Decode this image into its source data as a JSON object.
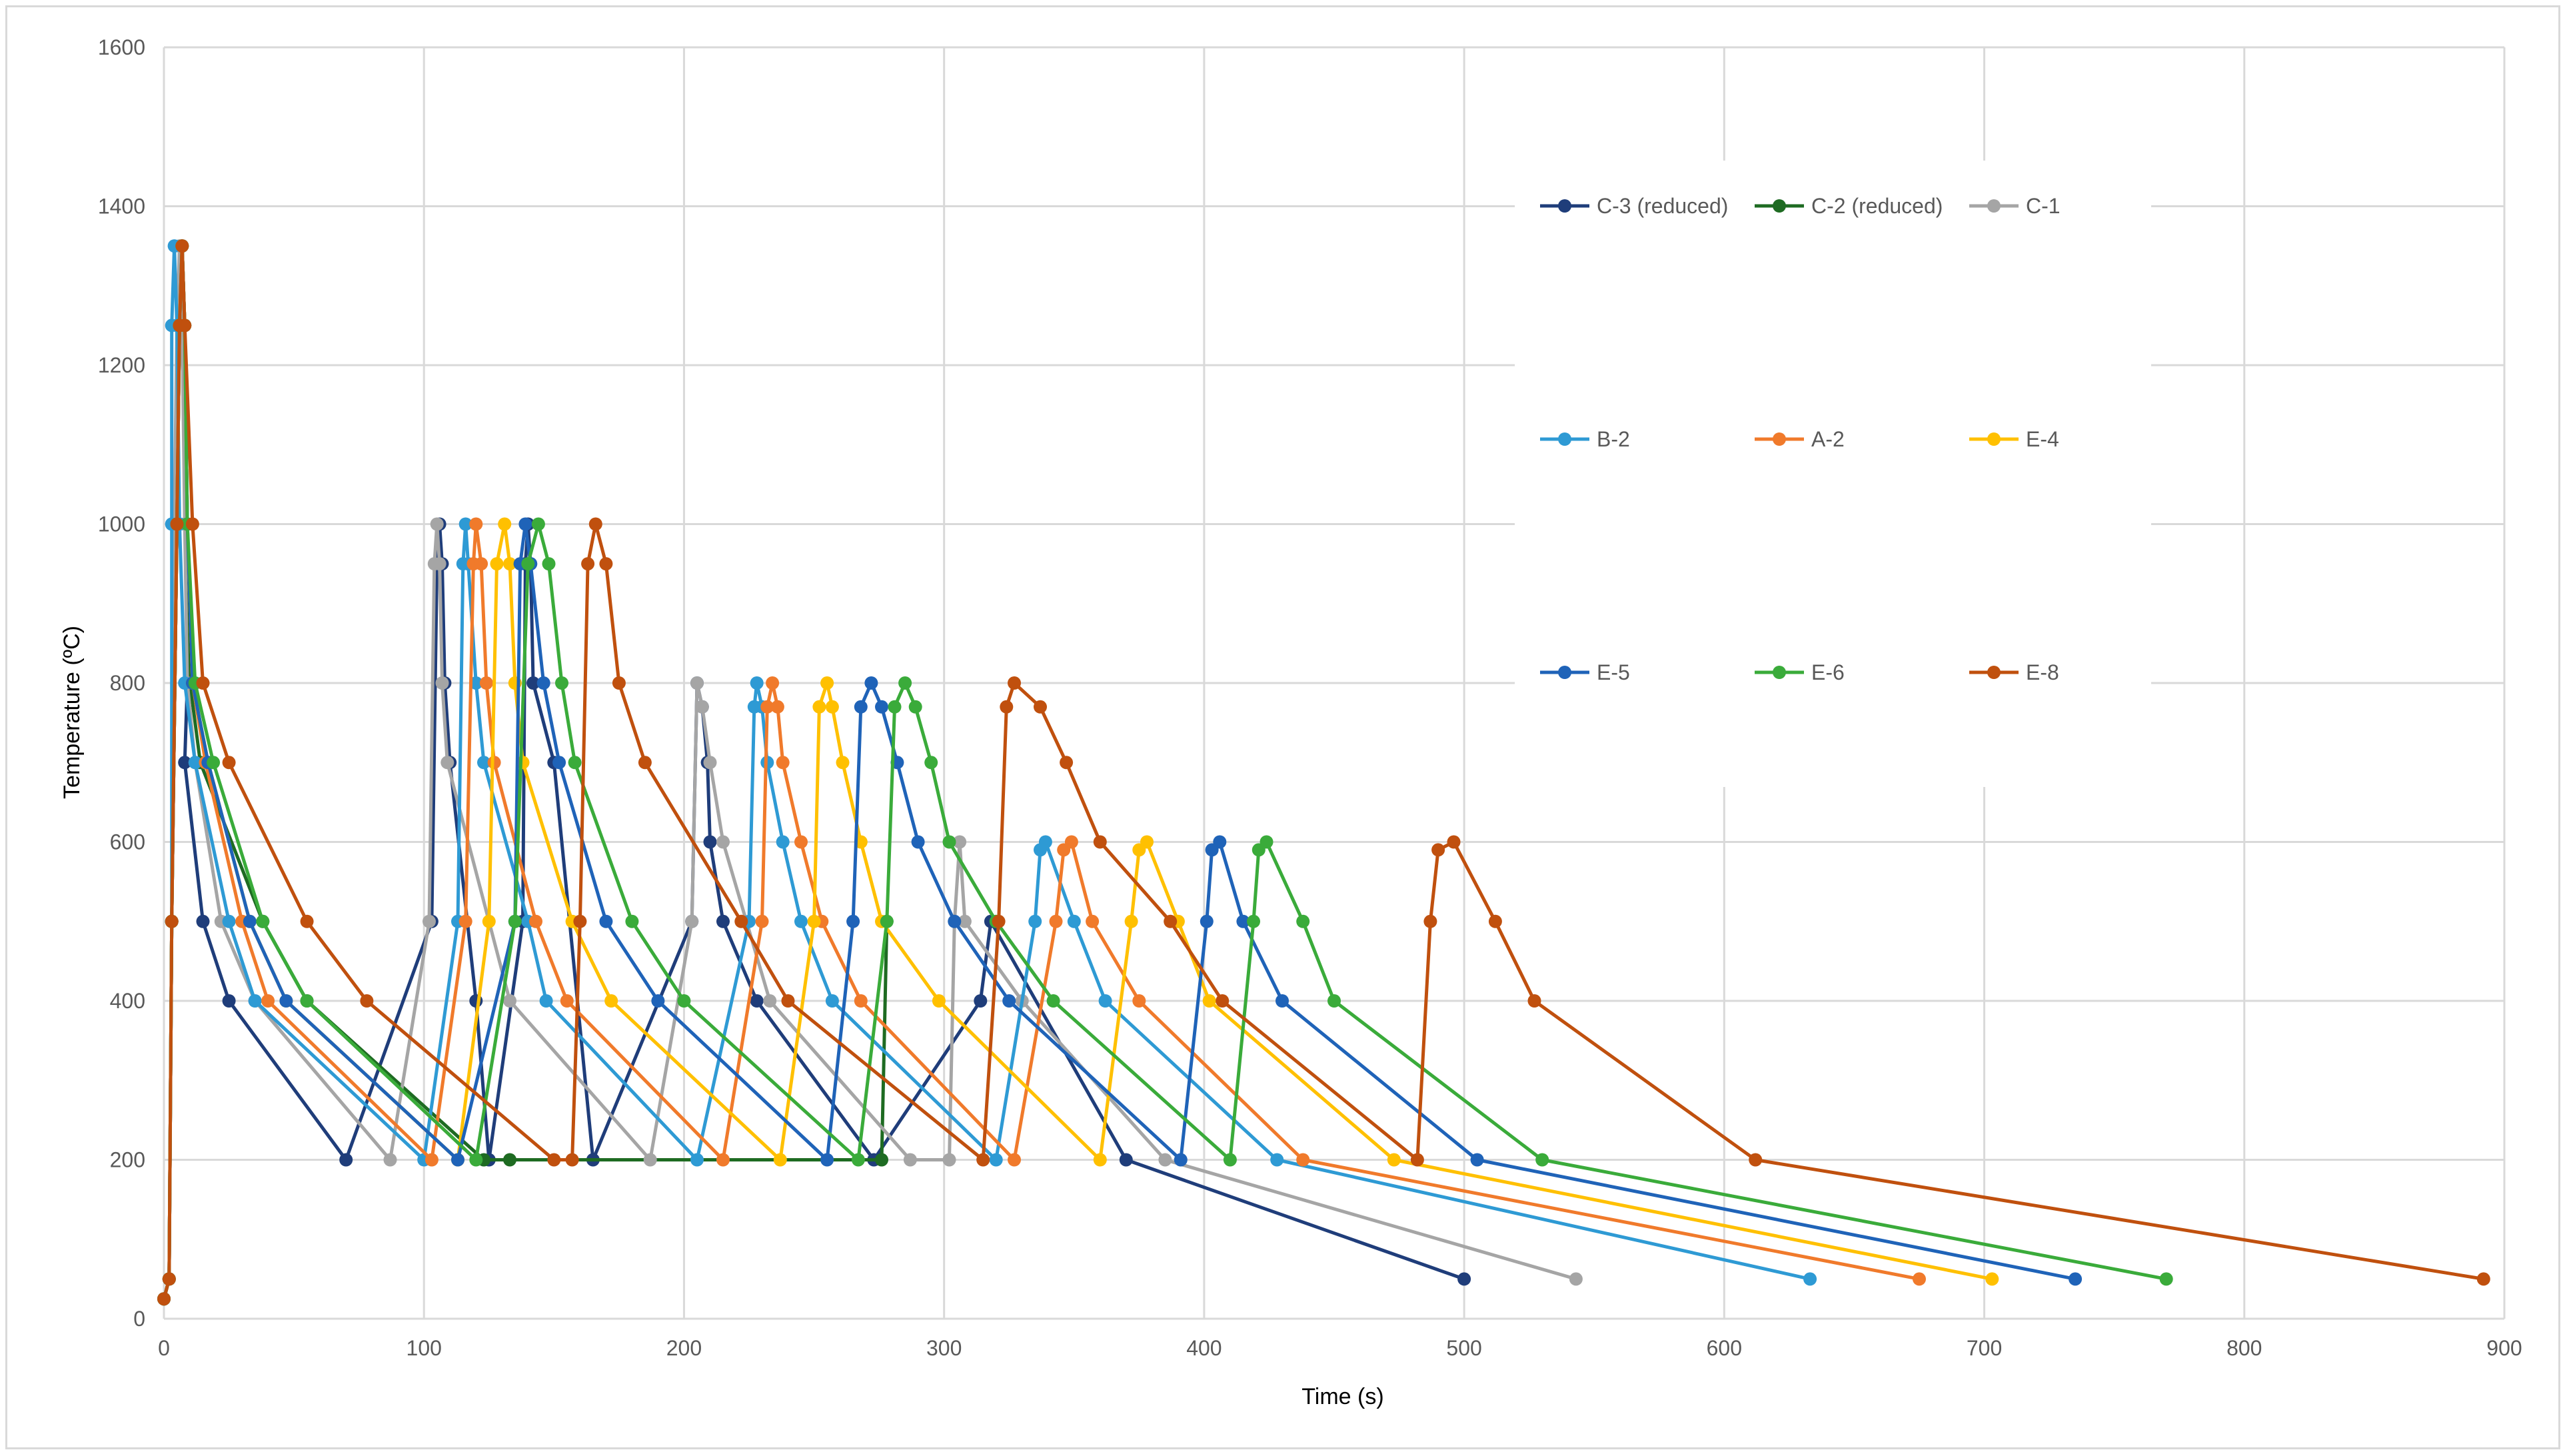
{
  "chart_data": {
    "type": "line",
    "title": "",
    "xlabel": "Time (s)",
    "ylabel": "Temperature (ºC)",
    "xlim": [
      0,
      900
    ],
    "ylim": [
      0,
      1600
    ],
    "xticks": [
      "0",
      "100",
      "200",
      "300",
      "400",
      "500",
      "600",
      "700",
      "800",
      "900"
    ],
    "yticks": [
      "0",
      "200",
      "400",
      "600",
      "800",
      "1000",
      "1200",
      "1400",
      "1600"
    ],
    "grid": true,
    "legend_position": "top-right",
    "series": [
      {
        "name": "C-3 (reduced)",
        "color": "#1f3d7a",
        "points": [
          [
            0,
            25
          ],
          [
            2,
            50
          ],
          [
            3,
            500
          ],
          [
            5,
            1000
          ],
          [
            6,
            1250
          ],
          [
            7,
            1350
          ],
          [
            8,
            1250
          ],
          [
            9,
            1000
          ],
          [
            9,
            800
          ],
          [
            8,
            700
          ],
          [
            15,
            500
          ],
          [
            25,
            400
          ],
          [
            70,
            200
          ],
          [
            103,
            500
          ],
          [
            105,
            950
          ],
          [
            106,
            1000
          ],
          [
            107,
            950
          ],
          [
            108,
            800
          ],
          [
            110,
            700
          ],
          [
            120,
            400
          ],
          [
            125,
            200
          ],
          [
            138,
            500
          ],
          [
            139,
            950
          ],
          [
            140,
            1000
          ],
          [
            141,
            950
          ],
          [
            142,
            800
          ],
          [
            150,
            700
          ],
          [
            165,
            200
          ],
          [
            203,
            500
          ],
          [
            205,
            800
          ],
          [
            207,
            770
          ],
          [
            209,
            700
          ],
          [
            210,
            600
          ],
          [
            215,
            500
          ],
          [
            228,
            400
          ],
          [
            273,
            200
          ],
          [
            314,
            400
          ],
          [
            318,
            500
          ],
          [
            370,
            200
          ],
          [
            500,
            50
          ]
        ]
      },
      {
        "name": "C-2 (reduced)",
        "color": "#1e6b22",
        "points": [
          [
            0,
            25
          ],
          [
            2,
            50
          ],
          [
            3,
            500
          ],
          [
            5,
            1000
          ],
          [
            6,
            1250
          ],
          [
            7,
            1350
          ],
          [
            8,
            1250
          ],
          [
            9,
            1000
          ],
          [
            10,
            800
          ],
          [
            14,
            700
          ],
          [
            38,
            500
          ],
          [
            55,
            400
          ],
          [
            123,
            200
          ],
          [
            133,
            200
          ],
          [
            276,
            200
          ],
          [
            278,
            500
          ]
        ]
      },
      {
        "name": "C-1",
        "color": "#a5a5a5",
        "points": [
          [
            0,
            25
          ],
          [
            2,
            50
          ],
          [
            3,
            500
          ],
          [
            4,
            1000
          ],
          [
            5,
            1250
          ],
          [
            6,
            1350
          ],
          [
            7,
            1250
          ],
          [
            8,
            1000
          ],
          [
            9,
            800
          ],
          [
            12,
            700
          ],
          [
            22,
            500
          ],
          [
            35,
            400
          ],
          [
            87,
            200
          ],
          [
            102,
            500
          ],
          [
            104,
            950
          ],
          [
            105,
            1000
          ],
          [
            106,
            950
          ],
          [
            107,
            800
          ],
          [
            109,
            700
          ],
          [
            133,
            400
          ],
          [
            187,
            200
          ],
          [
            203,
            500
          ],
          [
            205,
            800
          ],
          [
            207,
            770
          ],
          [
            210,
            700
          ],
          [
            215,
            600
          ],
          [
            233,
            400
          ],
          [
            287,
            200
          ],
          [
            302,
            200
          ],
          [
            304,
            500
          ],
          [
            306,
            600
          ],
          [
            308,
            500
          ],
          [
            330,
            400
          ],
          [
            385,
            200
          ],
          [
            543,
            50
          ]
        ]
      },
      {
        "name": "B-2",
        "color": "#2e9ad4",
        "points": [
          [
            0,
            25
          ],
          [
            2,
            50
          ],
          [
            3,
            500
          ],
          [
            3,
            1000
          ],
          [
            3,
            1250
          ],
          [
            4,
            1350
          ],
          [
            5,
            1250
          ],
          [
            6,
            1000
          ],
          [
            8,
            800
          ],
          [
            12,
            700
          ],
          [
            25,
            500
          ],
          [
            35,
            400
          ],
          [
            100,
            200
          ],
          [
            113,
            500
          ],
          [
            115,
            950
          ],
          [
            116,
            1000
          ],
          [
            117,
            950
          ],
          [
            120,
            800
          ],
          [
            123,
            700
          ],
          [
            140,
            500
          ],
          [
            147,
            400
          ],
          [
            205,
            200
          ],
          [
            225,
            500
          ],
          [
            227,
            770
          ],
          [
            228,
            800
          ],
          [
            230,
            770
          ],
          [
            232,
            700
          ],
          [
            238,
            600
          ],
          [
            245,
            500
          ],
          [
            257,
            400
          ],
          [
            320,
            200
          ],
          [
            335,
            500
          ],
          [
            337,
            590
          ],
          [
            339,
            600
          ],
          [
            350,
            500
          ],
          [
            362,
            400
          ],
          [
            428,
            200
          ],
          [
            633,
            50
          ]
        ]
      },
      {
        "name": "A-2",
        "color": "#f07a2b",
        "points": [
          [
            0,
            25
          ],
          [
            2,
            50
          ],
          [
            3,
            500
          ],
          [
            5,
            1000
          ],
          [
            6,
            1250
          ],
          [
            7,
            1350
          ],
          [
            8,
            1250
          ],
          [
            9,
            1000
          ],
          [
            11,
            800
          ],
          [
            16,
            700
          ],
          [
            30,
            500
          ],
          [
            40,
            400
          ],
          [
            103,
            200
          ],
          [
            116,
            500
          ],
          [
            119,
            950
          ],
          [
            120,
            1000
          ],
          [
            122,
            950
          ],
          [
            124,
            800
          ],
          [
            127,
            700
          ],
          [
            143,
            500
          ],
          [
            155,
            400
          ],
          [
            215,
            200
          ],
          [
            230,
            500
          ],
          [
            232,
            770
          ],
          [
            234,
            800
          ],
          [
            236,
            770
          ],
          [
            238,
            700
          ],
          [
            245,
            600
          ],
          [
            253,
            500
          ],
          [
            268,
            400
          ],
          [
            327,
            200
          ],
          [
            343,
            500
          ],
          [
            346,
            590
          ],
          [
            349,
            600
          ],
          [
            357,
            500
          ],
          [
            375,
            400
          ],
          [
            438,
            200
          ],
          [
            675,
            50
          ]
        ]
      },
      {
        "name": "E-4",
        "color": "#ffc000",
        "points": [
          [
            0,
            25
          ],
          [
            2,
            50
          ],
          [
            3,
            500
          ],
          [
            5,
            1000
          ],
          [
            6,
            1250
          ],
          [
            7,
            1350
          ],
          [
            8,
            1250
          ],
          [
            9,
            1000
          ],
          [
            11,
            800
          ],
          [
            17,
            700
          ],
          [
            33,
            500
          ],
          [
            47,
            400
          ],
          [
            113,
            200
          ],
          [
            125,
            500
          ],
          [
            128,
            950
          ],
          [
            131,
            1000
          ],
          [
            133,
            950
          ],
          [
            135,
            800
          ],
          [
            138,
            700
          ],
          [
            157,
            500
          ],
          [
            172,
            400
          ],
          [
            237,
            200
          ],
          [
            250,
            500
          ],
          [
            252,
            770
          ],
          [
            255,
            800
          ],
          [
            257,
            770
          ],
          [
            261,
            700
          ],
          [
            268,
            600
          ],
          [
            276,
            500
          ],
          [
            298,
            400
          ],
          [
            360,
            200
          ],
          [
            372,
            500
          ],
          [
            375,
            590
          ],
          [
            378,
            600
          ],
          [
            390,
            500
          ],
          [
            402,
            400
          ],
          [
            473,
            200
          ],
          [
            703,
            50
          ]
        ]
      },
      {
        "name": "E-5",
        "color": "#1f63b8",
        "points": [
          [
            0,
            25
          ],
          [
            2,
            50
          ],
          [
            3,
            500
          ],
          [
            5,
            1000
          ],
          [
            6,
            1250
          ],
          [
            7,
            1350
          ],
          [
            8,
            1250
          ],
          [
            9,
            1000
          ],
          [
            11,
            800
          ],
          [
            17,
            700
          ],
          [
            33,
            500
          ],
          [
            47,
            400
          ],
          [
            113,
            200
          ],
          [
            135,
            500
          ],
          [
            137,
            950
          ],
          [
            139,
            1000
          ],
          [
            141,
            950
          ],
          [
            146,
            800
          ],
          [
            152,
            700
          ],
          [
            170,
            500
          ],
          [
            190,
            400
          ],
          [
            255,
            200
          ],
          [
            265,
            500
          ],
          [
            268,
            770
          ],
          [
            272,
            800
          ],
          [
            276,
            770
          ],
          [
            282,
            700
          ],
          [
            290,
            600
          ],
          [
            304,
            500
          ],
          [
            325,
            400
          ],
          [
            391,
            200
          ],
          [
            401,
            500
          ],
          [
            403,
            590
          ],
          [
            406,
            600
          ],
          [
            415,
            500
          ],
          [
            430,
            400
          ],
          [
            505,
            200
          ],
          [
            735,
            50
          ]
        ]
      },
      {
        "name": "E-6",
        "color": "#3aab3a",
        "points": [
          [
            0,
            25
          ],
          [
            2,
            50
          ],
          [
            3,
            500
          ],
          [
            5,
            1000
          ],
          [
            6,
            1250
          ],
          [
            7,
            1350
          ],
          [
            8,
            1250
          ],
          [
            9,
            1000
          ],
          [
            12,
            800
          ],
          [
            19,
            700
          ],
          [
            38,
            500
          ],
          [
            55,
            400
          ],
          [
            120,
            200
          ],
          [
            135,
            500
          ],
          [
            140,
            950
          ],
          [
            144,
            1000
          ],
          [
            148,
            950
          ],
          [
            153,
            800
          ],
          [
            158,
            700
          ],
          [
            180,
            500
          ],
          [
            200,
            400
          ],
          [
            267,
            200
          ],
          [
            278,
            500
          ],
          [
            281,
            770
          ],
          [
            285,
            800
          ],
          [
            289,
            770
          ],
          [
            295,
            700
          ],
          [
            302,
            600
          ],
          [
            320,
            500
          ],
          [
            342,
            400
          ],
          [
            410,
            200
          ],
          [
            419,
            500
          ],
          [
            421,
            590
          ],
          [
            424,
            600
          ],
          [
            438,
            500
          ],
          [
            450,
            400
          ],
          [
            530,
            200
          ],
          [
            770,
            50
          ]
        ]
      },
      {
        "name": "E-8",
        "color": "#c0500e",
        "points": [
          [
            0,
            25
          ],
          [
            2,
            50
          ],
          [
            3,
            500
          ],
          [
            5,
            1000
          ],
          [
            6,
            1250
          ],
          [
            7,
            1350
          ],
          [
            8,
            1250
          ],
          [
            11,
            1000
          ],
          [
            15,
            800
          ],
          [
            25,
            700
          ],
          [
            55,
            500
          ],
          [
            78,
            400
          ],
          [
            150,
            200
          ],
          [
            157,
            200
          ],
          [
            160,
            500
          ],
          [
            163,
            950
          ],
          [
            166,
            1000
          ],
          [
            170,
            950
          ],
          [
            175,
            800
          ],
          [
            185,
            700
          ],
          [
            222,
            500
          ],
          [
            240,
            400
          ],
          [
            315,
            200
          ],
          [
            321,
            500
          ],
          [
            324,
            770
          ],
          [
            327,
            800
          ],
          [
            337,
            770
          ],
          [
            347,
            700
          ],
          [
            360,
            600
          ],
          [
            387,
            500
          ],
          [
            407,
            400
          ],
          [
            482,
            200
          ],
          [
            487,
            500
          ],
          [
            490,
            590
          ],
          [
            496,
            600
          ],
          [
            512,
            500
          ],
          [
            527,
            400
          ],
          [
            612,
            200
          ],
          [
            892,
            50
          ]
        ]
      }
    ]
  }
}
